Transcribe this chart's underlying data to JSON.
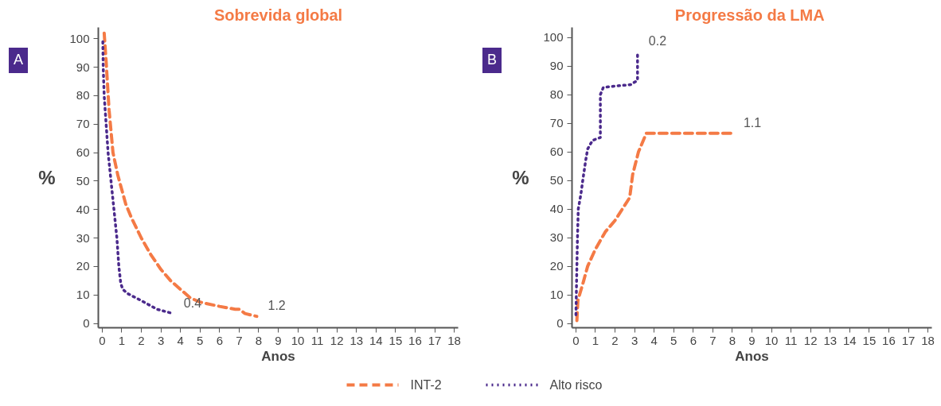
{
  "chart_data": [
    {
      "type": "line",
      "title": "Sobrevida global",
      "xlabel": "Anos",
      "ylabel": "%",
      "xlim": [
        -0.2,
        18.2
      ],
      "ylim": [
        -1.5,
        104
      ],
      "xticks": [
        0,
        1,
        2,
        3,
        4,
        5,
        6,
        7,
        8,
        9,
        10,
        11,
        12,
        13,
        14,
        15,
        16,
        17,
        18
      ],
      "yticks": [
        0,
        10,
        20,
        30,
        40,
        50,
        60,
        70,
        80,
        90,
        100
      ],
      "grid": false,
      "legend": "bottom",
      "annotations": [
        "A",
        "1.2",
        "0.4"
      ],
      "series": [
        {
          "name": "INT-2",
          "color": "#f47a45",
          "line_style": "dashed",
          "x": [
            0.1,
            0.2,
            0.35,
            0.55,
            0.8,
            1.2,
            1.5,
            2,
            2.5,
            3,
            3.5,
            4,
            4.5,
            5,
            6,
            6.8,
            7,
            7.3,
            7.9
          ],
          "values": [
            102,
            92,
            75,
            60,
            52,
            42,
            37,
            30,
            24,
            19,
            15,
            12,
            9,
            7.5,
            6,
            5,
            5,
            3.5,
            2.5
          ]
        },
        {
          "name": "Alto risco",
          "color": "#4b2a8c",
          "line_style": "dotted",
          "x": [
            0.03,
            0.05,
            0.1,
            0.2,
            0.3,
            0.45,
            0.6,
            0.75,
            0.85,
            0.95,
            1.05,
            1.3,
            2,
            2.8,
            3.6
          ],
          "values": [
            99,
            90,
            80,
            70,
            60,
            50,
            40,
            30,
            20,
            14,
            12,
            10.5,
            8,
            5,
            3.5
          ]
        }
      ]
    },
    {
      "type": "line",
      "title": "Progressão da  LMA",
      "xlabel": "Anos",
      "ylabel": "%",
      "xlim": [
        -0.2,
        18.2
      ],
      "ylim": [
        -1.5,
        103.5
      ],
      "xticks": [
        0,
        1,
        2,
        3,
        4,
        5,
        6,
        7,
        8,
        9,
        10,
        11,
        12,
        13,
        14,
        15,
        16,
        17,
        18
      ],
      "yticks": [
        0,
        10,
        20,
        30,
        40,
        50,
        60,
        70,
        80,
        90,
        100
      ],
      "grid": false,
      "annotations": [
        "B",
        "1.1",
        "0.2"
      ],
      "series": [
        {
          "color": "#f47a45",
          "line_style": "dashed",
          "x": [
            0.05,
            0.1,
            0.4,
            0.6,
            1,
            1.5,
            2,
            2.75,
            2.9,
            3.2,
            3.6,
            8
          ],
          "values": [
            1,
            8,
            15,
            20,
            26,
            32,
            36,
            44,
            52,
            60,
            66.5,
            66.5
          ]
        },
        {
          "color": "#4b2a8c",
          "line_style": "dotted",
          "x": [
            0,
            0.02,
            0.05,
            0.08,
            0.12,
            0.25,
            0.35,
            0.5,
            0.6,
            0.85,
            1.25,
            1.25,
            1.4,
            2,
            2.8,
            3.15,
            3.15
          ],
          "values": [
            3,
            10,
            20,
            30,
            40,
            45,
            50,
            57,
            61,
            64,
            65,
            80,
            82.5,
            83,
            83.5,
            85,
            95
          ]
        }
      ]
    }
  ]
}
